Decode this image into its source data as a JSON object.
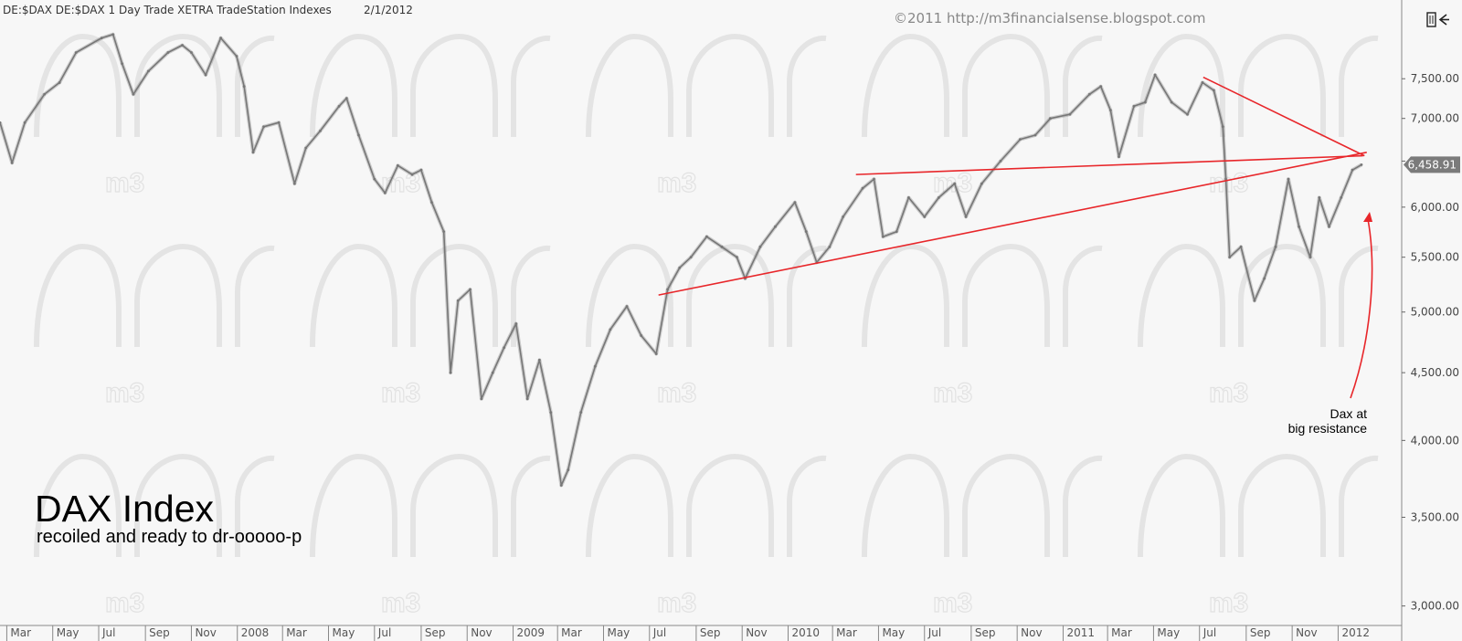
{
  "header": {
    "symbol_line": "DE:$DAX  DE:$DAX  1 Day  Trade  XETRA  TradeStation  Indexes",
    "date": "2/1/2012",
    "copyright": "©2011 http://m3financialsense.blogspot.com",
    "watermark": "m3"
  },
  "toolbar": {
    "icon": "panel-toggle-icon"
  },
  "chart_data": {
    "type": "line",
    "title": "DAX Index",
    "subtitle": "recoiled and ready to dr-ooooo-p",
    "xlabel": "",
    "ylabel": "",
    "y_scale": "log",
    "ylim": [
      2900,
      8200
    ],
    "y_ticks": [
      {
        "value": 3000,
        "label": "3,000.00"
      },
      {
        "value": 3500,
        "label": "3,500.00"
      },
      {
        "value": 4000,
        "label": "4,000.00"
      },
      {
        "value": 4500,
        "label": "4,500.00"
      },
      {
        "value": 5000,
        "label": "5,000.00"
      },
      {
        "value": 5500,
        "label": "5,500.00"
      },
      {
        "value": 6000,
        "label": "6,000.00"
      },
      {
        "value": 6500,
        "label": "6,500.00"
      },
      {
        "value": 7000,
        "label": "7,000.00"
      },
      {
        "value": 7500,
        "label": "7,500.00"
      }
    ],
    "last_price_label": "6,458.91",
    "last_price": 6458.91,
    "x_range": [
      "2007-02-20",
      "2012-02-01"
    ],
    "x_ticks": [
      {
        "date": "2007-03-01",
        "label": "Mar"
      },
      {
        "date": "2007-05-01",
        "label": "May"
      },
      {
        "date": "2007-07-01",
        "label": "Jul"
      },
      {
        "date": "2007-09-01",
        "label": "Sep"
      },
      {
        "date": "2007-11-01",
        "label": "Nov"
      },
      {
        "date": "2008-01-01",
        "label": "2008"
      },
      {
        "date": "2008-03-01",
        "label": "Mar"
      },
      {
        "date": "2008-05-01",
        "label": "May"
      },
      {
        "date": "2008-07-01",
        "label": "Jul"
      },
      {
        "date": "2008-09-01",
        "label": "Sep"
      },
      {
        "date": "2008-11-01",
        "label": "Nov"
      },
      {
        "date": "2009-01-01",
        "label": "2009"
      },
      {
        "date": "2009-03-01",
        "label": "Mar"
      },
      {
        "date": "2009-05-01",
        "label": "May"
      },
      {
        "date": "2009-07-01",
        "label": "Jul"
      },
      {
        "date": "2009-09-01",
        "label": "Sep"
      },
      {
        "date": "2009-11-01",
        "label": "Nov"
      },
      {
        "date": "2010-01-01",
        "label": "2010"
      },
      {
        "date": "2010-03-01",
        "label": "Mar"
      },
      {
        "date": "2010-05-01",
        "label": "May"
      },
      {
        "date": "2010-07-01",
        "label": "Jul"
      },
      {
        "date": "2010-09-01",
        "label": "Sep"
      },
      {
        "date": "2010-11-01",
        "label": "Nov"
      },
      {
        "date": "2011-01-01",
        "label": "2011"
      },
      {
        "date": "2011-03-01",
        "label": "Mar"
      },
      {
        "date": "2011-05-01",
        "label": "May"
      },
      {
        "date": "2011-07-01",
        "label": "Jul"
      },
      {
        "date": "2011-09-01",
        "label": "Sep"
      },
      {
        "date": "2011-11-01",
        "label": "Nov"
      },
      {
        "date": "2012-01-01",
        "label": "2012"
      }
    ],
    "series": [
      {
        "color": "#777777",
        "points": [
          [
            "2007-02-20",
            6950
          ],
          [
            "2007-03-08",
            6480
          ],
          [
            "2007-03-25",
            6950
          ],
          [
            "2007-04-20",
            7300
          ],
          [
            "2007-05-10",
            7450
          ],
          [
            "2007-06-01",
            7850
          ],
          [
            "2007-07-05",
            8050
          ],
          [
            "2007-07-20",
            8100
          ],
          [
            "2007-08-01",
            7700
          ],
          [
            "2007-08-16",
            7300
          ],
          [
            "2007-09-05",
            7600
          ],
          [
            "2007-10-01",
            7850
          ],
          [
            "2007-10-20",
            7950
          ],
          [
            "2007-11-01",
            7850
          ],
          [
            "2007-11-20",
            7550
          ],
          [
            "2007-12-10",
            8050
          ],
          [
            "2007-12-31",
            7800
          ],
          [
            "2008-01-10",
            7400
          ],
          [
            "2008-01-22",
            6600
          ],
          [
            "2008-02-05",
            6900
          ],
          [
            "2008-02-25",
            6950
          ],
          [
            "2008-03-17",
            6250
          ],
          [
            "2008-04-01",
            6650
          ],
          [
            "2008-04-20",
            6850
          ],
          [
            "2008-05-15",
            7150
          ],
          [
            "2008-05-25",
            7250
          ],
          [
            "2008-06-10",
            6800
          ],
          [
            "2008-07-01",
            6300
          ],
          [
            "2008-07-15",
            6150
          ],
          [
            "2008-08-01",
            6450
          ],
          [
            "2008-08-20",
            6350
          ],
          [
            "2008-09-01",
            6400
          ],
          [
            "2008-09-15",
            6050
          ],
          [
            "2008-10-01",
            5750
          ],
          [
            "2008-10-10",
            4500
          ],
          [
            "2008-10-20",
            5100
          ],
          [
            "2008-11-05",
            5200
          ],
          [
            "2008-11-20",
            4300
          ],
          [
            "2008-12-05",
            4500
          ],
          [
            "2008-12-20",
            4700
          ],
          [
            "2009-01-05",
            4900
          ],
          [
            "2009-01-20",
            4300
          ],
          [
            "2009-02-05",
            4600
          ],
          [
            "2009-02-20",
            4200
          ],
          [
            "2009-03-06",
            3700
          ],
          [
            "2009-03-15",
            3800
          ],
          [
            "2009-04-01",
            4200
          ],
          [
            "2009-04-20",
            4550
          ],
          [
            "2009-05-10",
            4850
          ],
          [
            "2009-06-01",
            5050
          ],
          [
            "2009-06-20",
            4800
          ],
          [
            "2009-07-10",
            4650
          ],
          [
            "2009-07-25",
            5200
          ],
          [
            "2009-08-10",
            5400
          ],
          [
            "2009-08-25",
            5500
          ],
          [
            "2009-09-15",
            5700
          ],
          [
            "2009-10-05",
            5600
          ],
          [
            "2009-10-25",
            5500
          ],
          [
            "2009-11-05",
            5300
          ],
          [
            "2009-11-25",
            5600
          ],
          [
            "2009-12-15",
            5800
          ],
          [
            "2010-01-10",
            6050
          ],
          [
            "2010-01-25",
            5750
          ],
          [
            "2010-02-08",
            5450
          ],
          [
            "2010-02-25",
            5600
          ],
          [
            "2010-03-15",
            5900
          ],
          [
            "2010-04-10",
            6200
          ],
          [
            "2010-04-25",
            6300
          ],
          [
            "2010-05-07",
            5700
          ],
          [
            "2010-05-25",
            5750
          ],
          [
            "2010-06-10",
            6100
          ],
          [
            "2010-07-01",
            5900
          ],
          [
            "2010-07-20",
            6100
          ],
          [
            "2010-08-10",
            6250
          ],
          [
            "2010-08-25",
            5900
          ],
          [
            "2010-09-15",
            6250
          ],
          [
            "2010-10-10",
            6500
          ],
          [
            "2010-11-05",
            6750
          ],
          [
            "2010-11-25",
            6800
          ],
          [
            "2010-12-15",
            7000
          ],
          [
            "2011-01-10",
            7050
          ],
          [
            "2011-02-05",
            7300
          ],
          [
            "2011-02-20",
            7400
          ],
          [
            "2011-03-05",
            7100
          ],
          [
            "2011-03-16",
            6550
          ],
          [
            "2011-04-05",
            7150
          ],
          [
            "2011-04-20",
            7200
          ],
          [
            "2011-05-03",
            7550
          ],
          [
            "2011-05-25",
            7200
          ],
          [
            "2011-06-15",
            7050
          ],
          [
            "2011-07-05",
            7450
          ],
          [
            "2011-07-20",
            7350
          ],
          [
            "2011-08-01",
            6900
          ],
          [
            "2011-08-05",
            6300
          ],
          [
            "2011-08-10",
            5500
          ],
          [
            "2011-08-25",
            5600
          ],
          [
            "2011-09-12",
            5100
          ],
          [
            "2011-09-25",
            5300
          ],
          [
            "2011-10-10",
            5600
          ],
          [
            "2011-10-27",
            6300
          ],
          [
            "2011-11-10",
            5800
          ],
          [
            "2011-11-25",
            5500
          ],
          [
            "2011-12-07",
            6100
          ],
          [
            "2011-12-20",
            5800
          ],
          [
            "2012-01-05",
            6100
          ],
          [
            "2012-01-20",
            6400
          ],
          [
            "2012-02-01",
            6458.91
          ]
        ]
      }
    ],
    "trendlines": [
      {
        "from": [
          "2010-04-01",
          6350
        ],
        "to": [
          "2012-02-03",
          6560
        ],
        "color": "#e8262a"
      },
      {
        "from": [
          "2009-07-13",
          5150
        ],
        "to": [
          "2012-02-08",
          6600
        ],
        "color": "#e8262a"
      },
      {
        "from": [
          "2011-07-06",
          7520
        ],
        "to": [
          "2012-02-05",
          6560
        ],
        "color": "#e8262a"
      }
    ],
    "annotation": {
      "lines": [
        "Dax at",
        "big resistance"
      ],
      "arrow_color": "#e8262a"
    }
  }
}
